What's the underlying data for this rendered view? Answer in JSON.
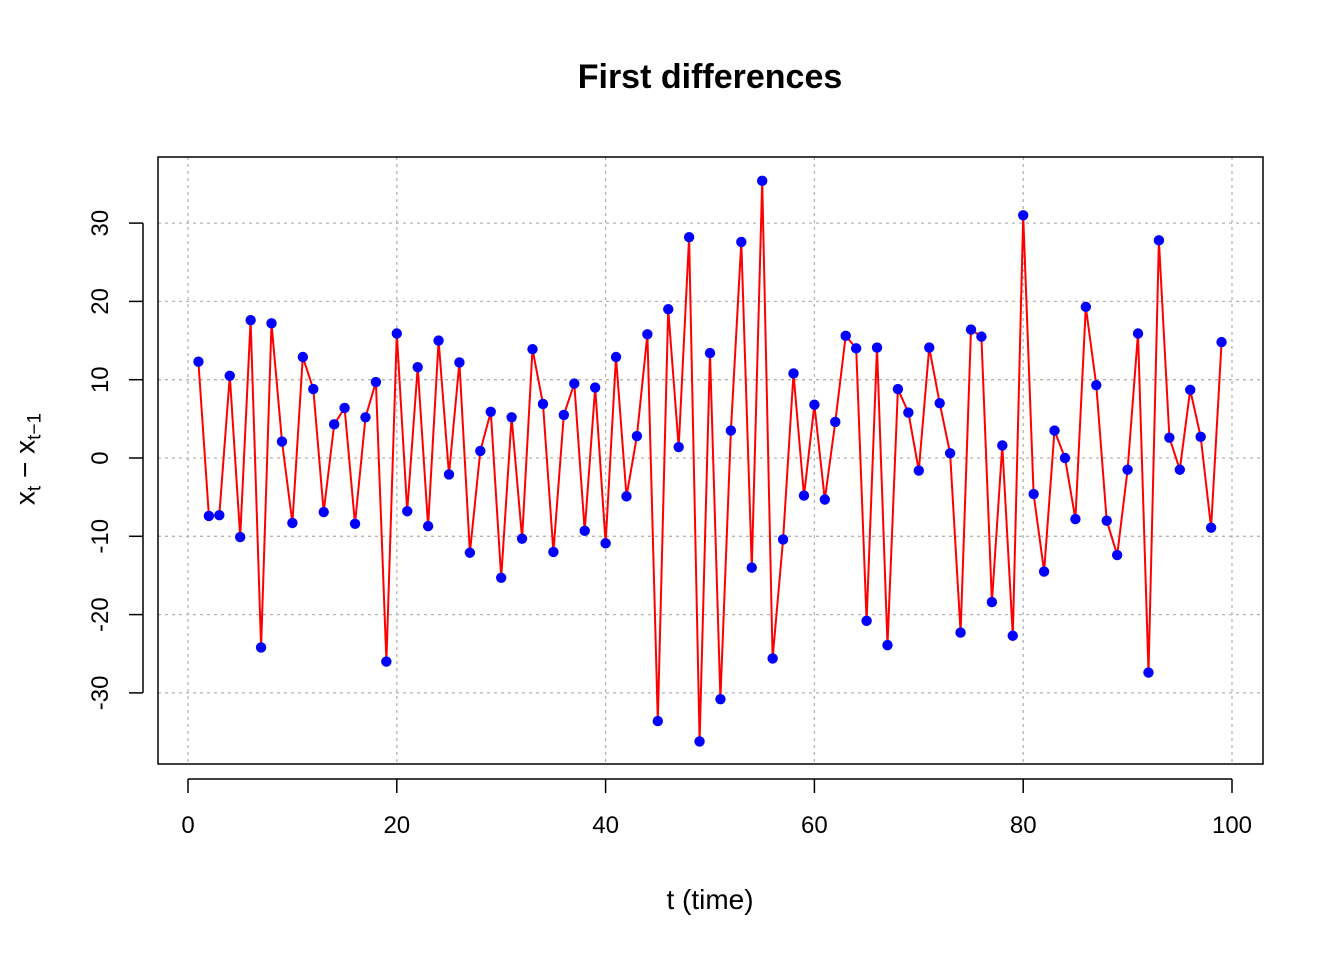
{
  "chart_data": {
    "type": "line",
    "title": "First differences",
    "xlabel": "t (time)",
    "ylabel": {
      "base1": "x",
      "sub1": "t",
      "op": " − ",
      "base2": "x",
      "sub2": "t−1"
    },
    "xlim": [
      0,
      100
    ],
    "ylim": [
      -36,
      36
    ],
    "xticks": [
      0,
      20,
      40,
      60,
      80,
      100
    ],
    "yticks": [
      -30,
      -20,
      -10,
      0,
      10,
      20,
      30
    ],
    "grid": true,
    "line_color": "#ff0000",
    "point_color": "#0000ff",
    "x": [
      1,
      2,
      3,
      4,
      5,
      6,
      7,
      8,
      9,
      10,
      11,
      12,
      13,
      14,
      15,
      16,
      17,
      18,
      19,
      20,
      21,
      22,
      23,
      24,
      25,
      26,
      27,
      28,
      29,
      30,
      31,
      32,
      33,
      34,
      35,
      36,
      37,
      38,
      39,
      40,
      41,
      42,
      43,
      44,
      45,
      46,
      47,
      48,
      49,
      50,
      51,
      52,
      53,
      54,
      55,
      56,
      57,
      58,
      59,
      60,
      61,
      62,
      63,
      64,
      65,
      66,
      67,
      68,
      69,
      70,
      71,
      72,
      73,
      74,
      75,
      76,
      77,
      78,
      79,
      80,
      81,
      82,
      83,
      84,
      85,
      86,
      87,
      88,
      89,
      90,
      91,
      92,
      93,
      94,
      95,
      96,
      97,
      98,
      99
    ],
    "values": [
      12.3,
      -7.4,
      -7.3,
      10.5,
      -10.1,
      17.6,
      -24.2,
      17.2,
      2.1,
      -8.3,
      12.9,
      8.8,
      -6.9,
      4.3,
      6.4,
      -8.4,
      5.2,
      9.7,
      -26.0,
      15.9,
      -6.8,
      11.6,
      -8.7,
      15.0,
      -2.1,
      12.2,
      -12.1,
      0.9,
      5.9,
      -15.3,
      5.2,
      -10.3,
      13.9,
      6.9,
      -12.0,
      5.5,
      9.5,
      -9.3,
      9.0,
      -10.9,
      12.9,
      -4.9,
      2.8,
      15.8,
      -33.6,
      19.0,
      1.4,
      28.2,
      -36.2,
      13.4,
      -30.8,
      3.5,
      27.6,
      -14.0,
      35.4,
      -25.6,
      -10.4,
      10.8,
      -4.8,
      6.8,
      -5.3,
      4.6,
      15.6,
      14.0,
      -20.8,
      14.1,
      -23.9,
      8.8,
      5.8,
      -1.6,
      14.1,
      7.0,
      0.6,
      -22.3,
      16.4,
      15.5,
      -18.4,
      1.6,
      -22.7,
      31.0,
      -4.6,
      -14.5,
      3.5,
      0.0,
      -7.8,
      19.3,
      9.3,
      -8.0,
      -12.4,
      -1.5,
      15.9,
      -27.4,
      27.8,
      2.6,
      -1.5,
      8.7,
      2.7,
      -8.9,
      14.8
    ]
  }
}
